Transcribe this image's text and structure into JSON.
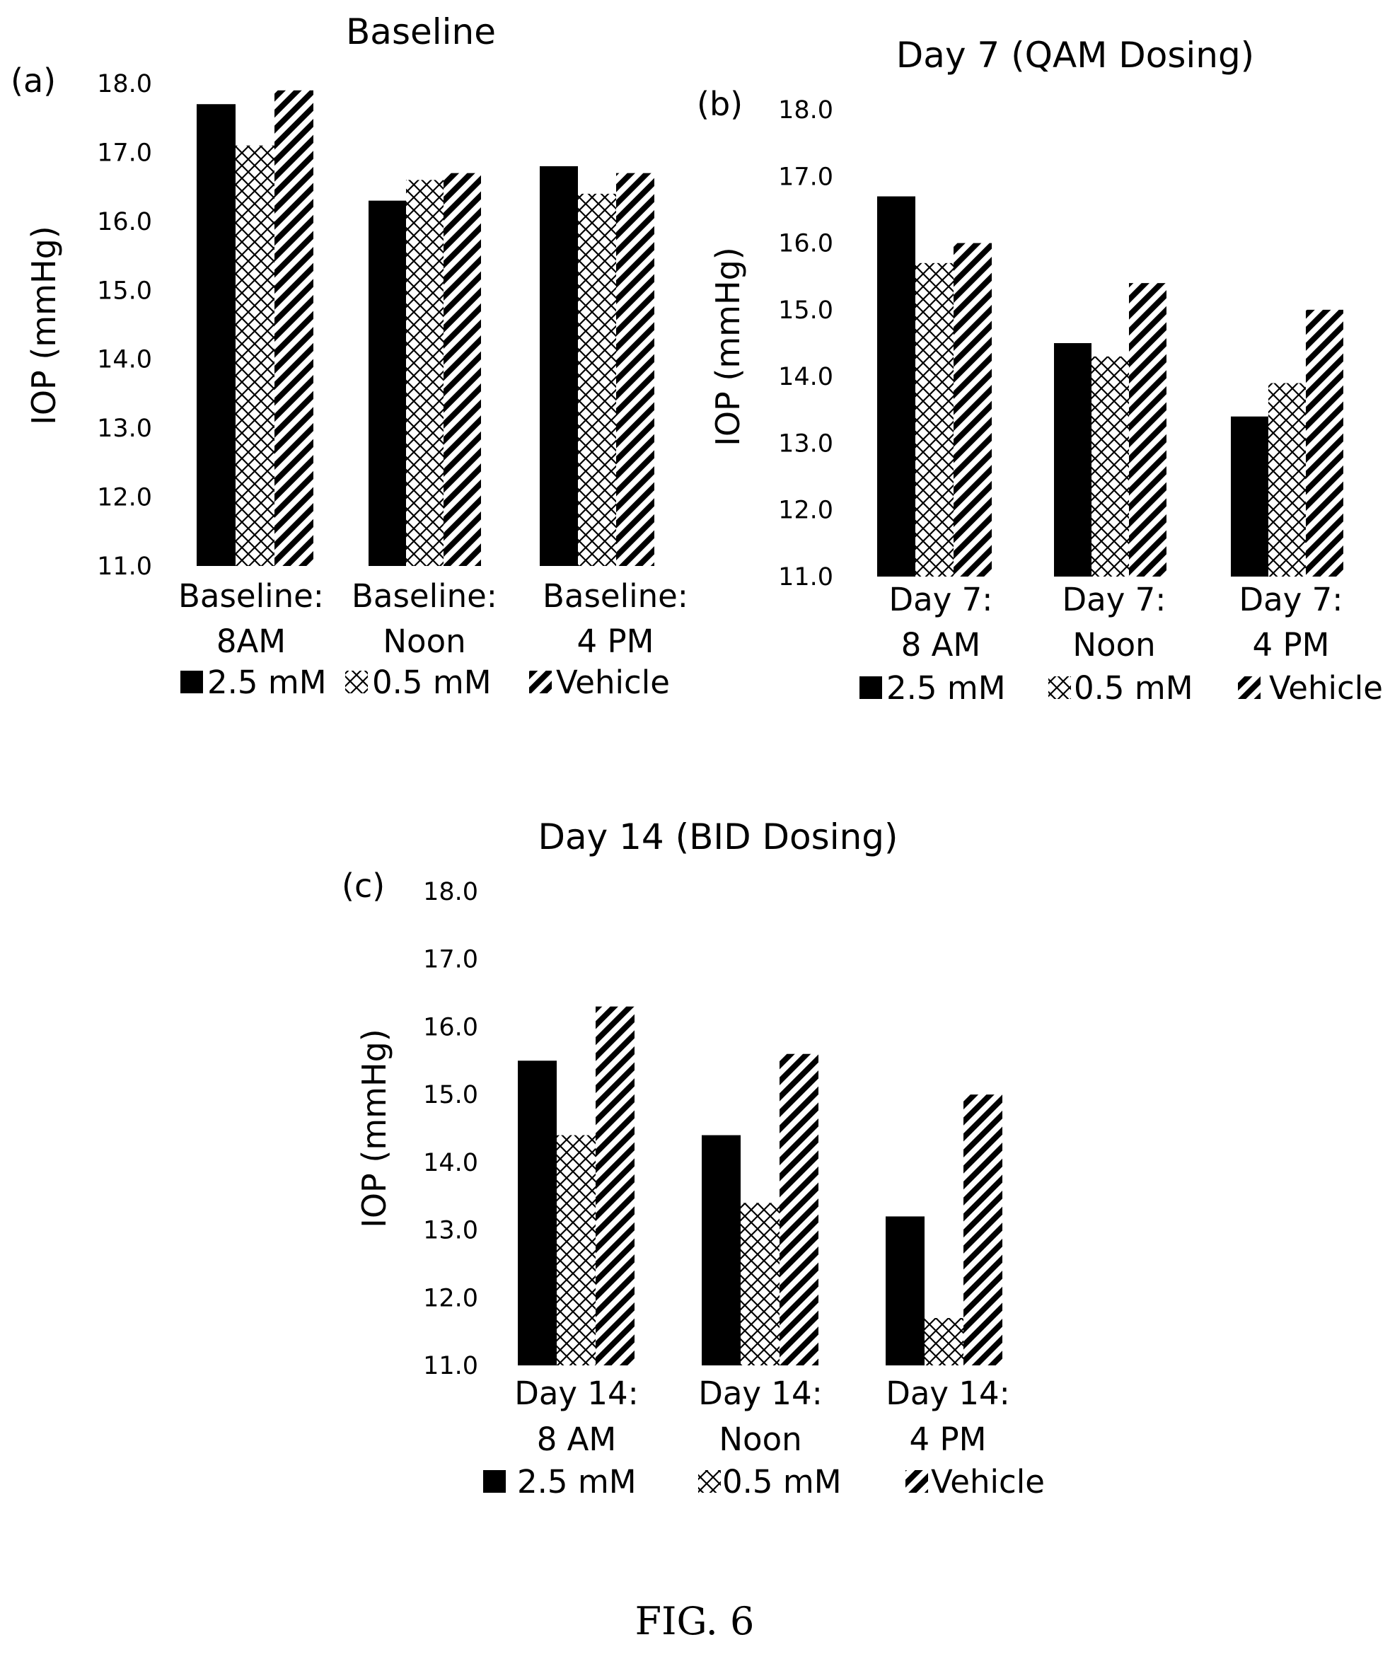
{
  "figure_caption": "FIG. 6",
  "colors": {
    "series_fill": "#000000",
    "background": "#ffffff"
  },
  "chart_data": [
    {
      "type": "bar",
      "panel_label": "(a)",
      "title": "Baseline",
      "ylabel": "IOP (mmHg)",
      "ylim": [
        11.0,
        18.0
      ],
      "yticks": [
        "11.0",
        "12.0",
        "13.0",
        "14.0",
        "15.0",
        "16.0",
        "17.0",
        "18.0"
      ],
      "grid": false,
      "legend_position": "bottom",
      "categories": [
        [
          "Baseline:",
          "8AM"
        ],
        [
          "Baseline:",
          "Noon"
        ],
        [
          "Baseline:",
          "4 PM"
        ]
      ],
      "series": [
        {
          "name": "2.5 mM",
          "pattern": "solid",
          "values": [
            17.7,
            16.3,
            16.8
          ]
        },
        {
          "name": "0.5 mM",
          "pattern": "crosshatch",
          "values": [
            17.1,
            16.6,
            16.4
          ]
        },
        {
          "name": "Vehicle",
          "pattern": "diagonal",
          "values": [
            17.9,
            16.7,
            16.7
          ]
        }
      ]
    },
    {
      "type": "bar",
      "panel_label": "(b)",
      "title": "Day 7 (QAM Dosing)",
      "ylabel": "IOP (mmHg)",
      "ylim": [
        11.0,
        18.0
      ],
      "yticks": [
        "11.0",
        "12.0",
        "13.0",
        "14.0",
        "15.0",
        "16.0",
        "17.0",
        "18.0"
      ],
      "grid": false,
      "legend_position": "bottom",
      "categories": [
        [
          "Day 7:",
          "8 AM"
        ],
        [
          "Day 7:",
          "Noon"
        ],
        [
          "Day 7:",
          "4 PM"
        ]
      ],
      "series": [
        {
          "name": "2.5 mM",
          "pattern": "solid",
          "values": [
            16.7,
            14.5,
            13.4
          ]
        },
        {
          "name": "0.5 mM",
          "pattern": "crosshatch",
          "values": [
            15.7,
            14.3,
            13.9
          ]
        },
        {
          "name": "Vehicle",
          "pattern": "diagonal",
          "values": [
            16.0,
            15.4,
            15.0
          ]
        }
      ]
    },
    {
      "type": "bar",
      "panel_label": "(c)",
      "title": "Day 14 (BID Dosing)",
      "ylabel": "IOP (mmHg)",
      "ylim": [
        11.0,
        18.0
      ],
      "yticks": [
        "11.0",
        "12.0",
        "13.0",
        "14.0",
        "15.0",
        "16.0",
        "17.0",
        "18.0"
      ],
      "grid": false,
      "legend_position": "bottom",
      "categories": [
        [
          "Day 14:",
          "8 AM"
        ],
        [
          "Day 14:",
          "Noon"
        ],
        [
          "Day 14:",
          "4 PM"
        ]
      ],
      "series": [
        {
          "name": "2.5 mM",
          "pattern": "solid",
          "values": [
            15.5,
            14.4,
            13.2
          ]
        },
        {
          "name": "0.5 mM",
          "pattern": "crosshatch",
          "values": [
            14.4,
            13.4,
            11.7
          ]
        },
        {
          "name": "Vehicle",
          "pattern": "diagonal",
          "values": [
            16.3,
            15.6,
            15.0
          ]
        }
      ]
    }
  ]
}
